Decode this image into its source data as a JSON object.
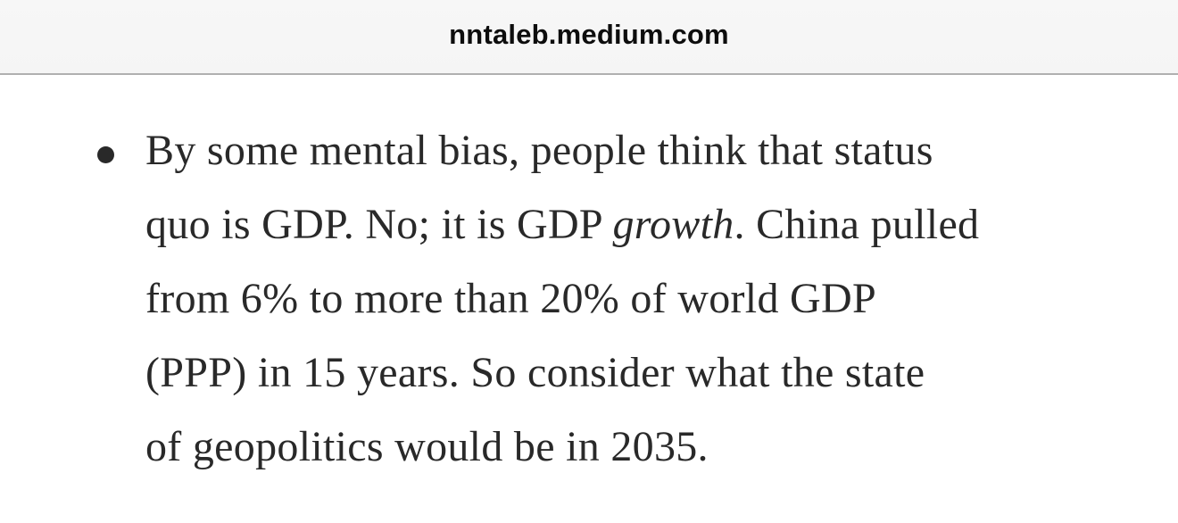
{
  "header": {
    "url": "nntaleb.medium.com",
    "background_color": "#f6f6f6",
    "border_color": "#b0b0b0",
    "url_text_color": "#0d0d0d"
  },
  "article": {
    "text_color": "#292929",
    "bullet_item": {
      "line1": "By some mental bias, people think that status",
      "line2_pre": "quo is GDP. No; it is GDP ",
      "line2_italic": "growth",
      "line2_post": ". China pulled",
      "line3": "from 6% to more than 20% of world GDP",
      "line4": "(PPP) in 15 years. So consider what the state",
      "line5": "of geopolitics would be in 2035."
    }
  }
}
